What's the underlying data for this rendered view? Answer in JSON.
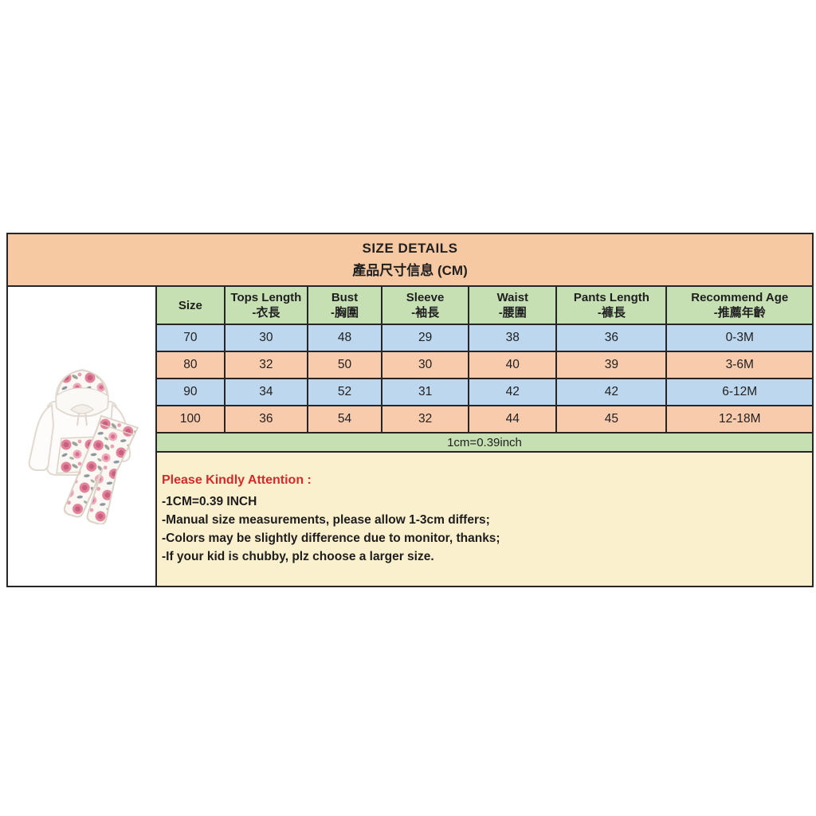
{
  "banner": {
    "title": "SIZE DETAILS",
    "subtitle": "產品尺寸信息 (CM)"
  },
  "size_table": {
    "columns": [
      {
        "label": "Size",
        "sub": ""
      },
      {
        "label": "Tops Length",
        "sub": "-衣長"
      },
      {
        "label": "Bust",
        "sub": "-胸圍"
      },
      {
        "label": "Sleeve",
        "sub": "-袖長"
      },
      {
        "label": "Waist",
        "sub": "-腰圍"
      },
      {
        "label": "Pants Length",
        "sub": "-褲長"
      },
      {
        "label": "Recommend Age",
        "sub": "-推薦年齡"
      }
    ],
    "rows": [
      [
        "70",
        "30",
        "48",
        "29",
        "38",
        "36",
        "0-3M"
      ],
      [
        "80",
        "32",
        "50",
        "30",
        "40",
        "39",
        "3-6M"
      ],
      [
        "90",
        "34",
        "52",
        "31",
        "42",
        "42",
        "6-12M"
      ],
      [
        "100",
        "36",
        "54",
        "32",
        "44",
        "45",
        "12-18M"
      ]
    ],
    "unit_note": "1cm=0.39inch"
  },
  "attention": {
    "heading": "Please Kindly Attention :",
    "lines": [
      "-1CM=0.39 INCH",
      "-Manual size measurements, please allow 1-3cm differs;",
      "-Colors may be slightly difference due to monitor, thanks;",
      "-If your kid is chubby, plz choose a larger size."
    ]
  },
  "product_image": {
    "description": "white baby hoodie with floral hood lining and floral pocket, floral print pants"
  },
  "colors": {
    "banner_bg": "#F7C9A3",
    "header_row_bg": "#C6E0B4",
    "row_blue_bg": "#BDD7EE",
    "row_orange_bg": "#F8CBAD",
    "unit_row_bg": "#C6E0B4",
    "attention_bg": "#FBF0CE",
    "attention_heading_color": "#D42A2A",
    "border_color": "#262626"
  }
}
